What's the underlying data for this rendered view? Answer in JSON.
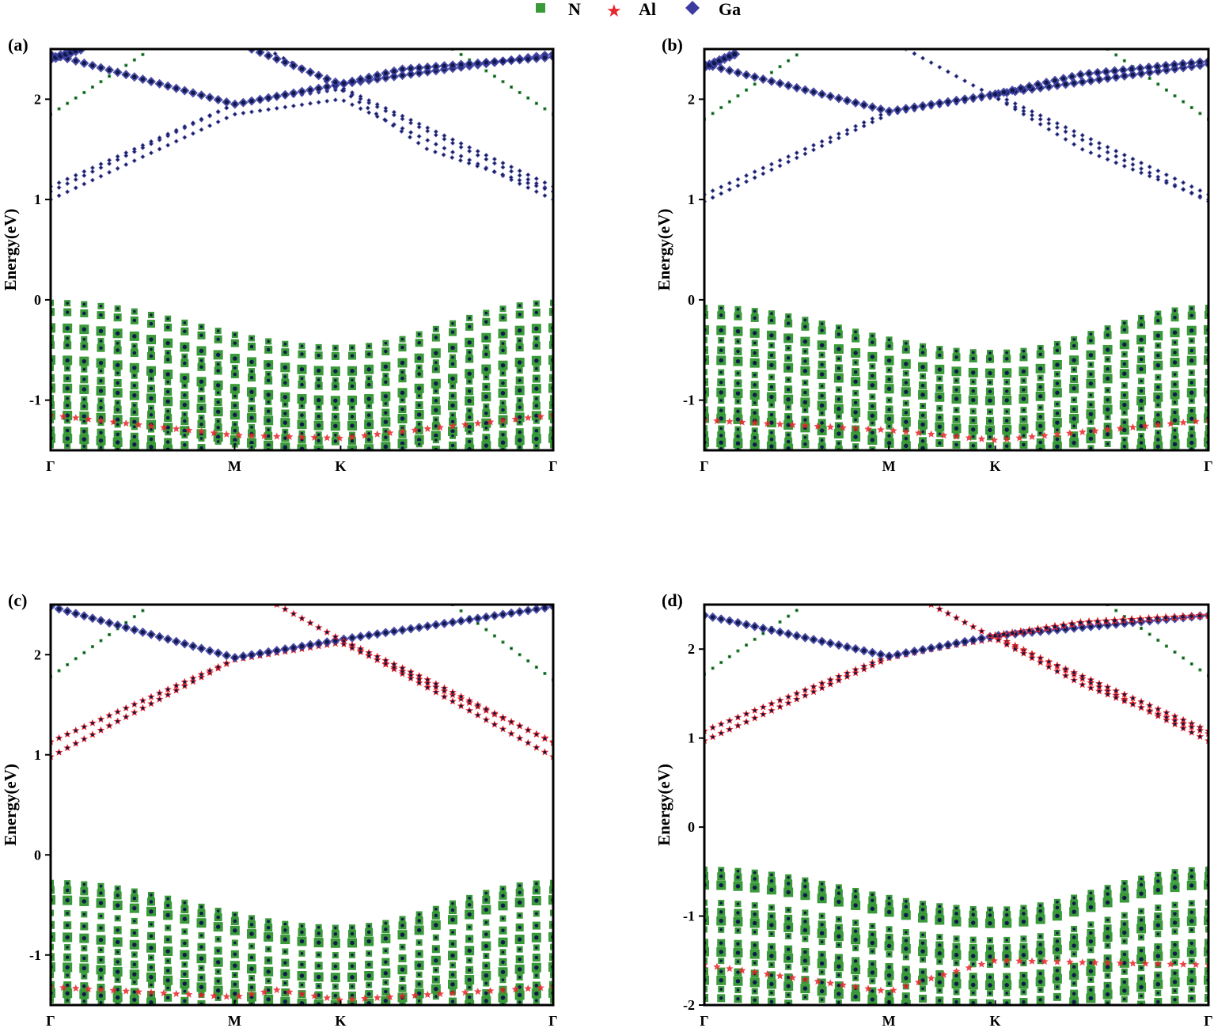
{
  "legend": {
    "items": [
      {
        "label": "N",
        "marker": "square",
        "color": "#3a9a3a"
      },
      {
        "label": "Al",
        "marker": "star",
        "color": "#e8252a"
      },
      {
        "label": "Ga",
        "marker": "diamond",
        "color": "#3b3ba0"
      }
    ]
  },
  "colors": {
    "N": "#3a9a3a",
    "Al": "#e8252a",
    "Ga": "#3b3ba0",
    "inner": "#0e1a4a"
  },
  "chart_data": [
    {
      "type": "scatter",
      "panel": "(a)",
      "ylabel": "Energy(eV)",
      "ylim": [
        -1.5,
        2.5
      ],
      "yticks": [
        -1,
        0,
        1,
        2
      ],
      "xticks": [
        "Γ",
        "M",
        "K",
        "Γ"
      ],
      "xtick_pos": [
        0,
        0.366,
        0.577,
        1.0
      ],
      "gap_vbm": -0.03,
      "gap_cbm": 1.0,
      "cond_bands": [
        {
          "points": [
            [
              0,
              1.0
            ],
            [
              0.366,
              1.85
            ],
            [
              0.577,
              2.0
            ],
            [
              1.0,
              1.0
            ]
          ],
          "species": "Ga",
          "size": 3
        },
        {
          "points": [
            [
              0,
              1.08
            ],
            [
              0.366,
              1.95
            ],
            [
              0.577,
              2.1
            ],
            [
              1.0,
              1.08
            ]
          ],
          "species": "Ga",
          "size": 3
        },
        {
          "points": [
            [
              0,
              1.13
            ],
            [
              0.366,
              1.95
            ],
            [
              0.577,
              2.12
            ],
            [
              1.0,
              1.13
            ]
          ],
          "species": "Ga",
          "size": 3
        },
        {
          "points": [
            [
              0,
              1.85
            ],
            [
              0.2,
              2.5
            ]
          ],
          "species": "N",
          "size": 2
        },
        {
          "points": [
            [
              0.8,
              2.5
            ],
            [
              1.0,
              1.85
            ]
          ],
          "species": "N",
          "size": 2
        },
        {
          "points": [
            [
              0,
              2.45
            ],
            [
              0.366,
              1.95
            ],
            [
              0.577,
              2.15
            ],
            [
              1.0,
              2.45
            ]
          ],
          "species": "Ga",
          "size": 6
        },
        {
          "points": [
            [
              0,
              2.4
            ],
            [
              0.06,
              2.5
            ]
          ],
          "species": "Ga",
          "size": 7
        },
        {
          "points": [
            [
              0.43,
              2.5
            ],
            [
              0.577,
              2.1
            ],
            [
              0.75,
              1.5
            ],
            [
              1.0,
              1.08
            ]
          ],
          "species": "Ga",
          "size": 3
        },
        {
          "points": [
            [
              0.4,
              2.5
            ],
            [
              0.577,
              2.15
            ],
            [
              0.7,
              2.3
            ],
            [
              1.0,
              2.42
            ]
          ],
          "species": "Ga",
          "size": 6
        }
      ],
      "val_tops": [
        -0.03,
        -0.12,
        -0.28,
        -0.38,
        -0.45,
        -0.6,
        -0.68,
        -0.78,
        -0.88,
        -0.98,
        -1.05,
        -1.15,
        -1.2,
        -1.3,
        -1.38,
        -1.45
      ],
      "al_valence": [
        [
          0,
          -1.15
        ],
        [
          0.366,
          -1.35
        ],
        [
          0.577,
          -1.38
        ],
        [
          1.0,
          -1.15
        ]
      ]
    },
    {
      "type": "scatter",
      "panel": "(b)",
      "ylabel": "Energy(eV)",
      "ylim": [
        -1.5,
        2.5
      ],
      "yticks": [
        -1,
        0,
        1,
        2
      ],
      "xticks": [
        "Γ",
        "M",
        "K",
        "Γ"
      ],
      "xtick_pos": [
        0,
        0.366,
        0.577,
        1.0
      ],
      "gap_vbm": -0.08,
      "gap_cbm": 0.98,
      "cond_bands": [
        {
          "points": [
            [
              0,
              0.98
            ],
            [
              0.366,
              1.85
            ],
            [
              0.577,
              2.02
            ],
            [
              1.0,
              0.98
            ]
          ],
          "species": "Ga",
          "size": 3
        },
        {
          "points": [
            [
              0,
              1.05
            ],
            [
              0.366,
              1.88
            ],
            [
              0.577,
              2.05
            ],
            [
              1.0,
              1.05
            ]
          ],
          "species": "Ga",
          "size": 3
        },
        {
          "points": [
            [
              0,
              1.8
            ],
            [
              0.2,
              2.5
            ]
          ],
          "species": "N",
          "size": 2
        },
        {
          "points": [
            [
              0.8,
              2.5
            ],
            [
              1.0,
              1.8
            ]
          ],
          "species": "N",
          "size": 2
        },
        {
          "points": [
            [
              0,
              2.35
            ],
            [
              0.366,
              1.88
            ],
            [
              0.577,
              2.05
            ],
            [
              1.0,
              2.35
            ]
          ],
          "species": "Ga",
          "size": 6
        },
        {
          "points": [
            [
              0,
              2.32
            ],
            [
              0.06,
              2.45
            ]
          ],
          "species": "Ga",
          "size": 7
        },
        {
          "points": [
            [
              0.4,
              2.5
            ],
            [
              0.577,
              2.02
            ],
            [
              0.75,
              1.5
            ],
            [
              1.0,
              1.0
            ]
          ],
          "species": "Ga",
          "size": 3
        },
        {
          "points": [
            [
              0.577,
              2.05
            ],
            [
              0.75,
              2.25
            ],
            [
              1.0,
              2.38
            ]
          ],
          "species": "Ga",
          "size": 6
        }
      ],
      "val_tops": [
        -0.08,
        -0.15,
        -0.3,
        -0.4,
        -0.5,
        -0.6,
        -0.72,
        -0.82,
        -0.92,
        -1.0,
        -1.1,
        -1.18,
        -1.28,
        -1.35,
        -1.42,
        -1.48
      ],
      "al_valence": [
        [
          0,
          -1.2
        ],
        [
          0.366,
          -1.3
        ],
        [
          0.577,
          -1.4
        ],
        [
          1.0,
          -1.2
        ]
      ]
    },
    {
      "type": "scatter",
      "panel": "(c)",
      "ylabel": "Energy(eV)",
      "ylim": [
        -1.5,
        2.5
      ],
      "yticks": [
        -1,
        0,
        1,
        2
      ],
      "xticks": [
        "Γ",
        "M",
        "K",
        "Γ"
      ],
      "xtick_pos": [
        0,
        0.366,
        0.577,
        1.0
      ],
      "gap_vbm": -0.28,
      "gap_cbm": 0.98,
      "cond_bands": [
        {
          "points": [
            [
              0,
              0.98
            ],
            [
              0.366,
              1.95
            ],
            [
              0.577,
              2.15
            ],
            [
              1.0,
              0.98
            ]
          ],
          "species": "Al",
          "size": 4
        },
        {
          "points": [
            [
              0,
              1.13
            ],
            [
              0.366,
              1.95
            ],
            [
              0.577,
              2.12
            ],
            [
              1.0,
              1.13
            ]
          ],
          "species": "Al",
          "size": 4
        },
        {
          "points": [
            [
              0,
              1.78
            ],
            [
              0.2,
              2.5
            ]
          ],
          "species": "N",
          "size": 2
        },
        {
          "points": [
            [
              0.8,
              2.5
            ],
            [
              1.0,
              1.75
            ]
          ],
          "species": "N",
          "size": 2
        },
        {
          "points": [
            [
              0,
              2.48
            ],
            [
              0.366,
              1.97
            ],
            [
              0.577,
              2.15
            ],
            [
              1.0,
              2.48
            ]
          ],
          "species": "Ga",
          "size": 6
        },
        {
          "points": [
            [
              0.45,
              2.5
            ],
            [
              0.577,
              2.15
            ],
            [
              0.75,
              1.75
            ],
            [
              1.0,
              1.12
            ]
          ],
          "species": "Al",
          "size": 4
        }
      ],
      "val_tops": [
        -0.28,
        -0.35,
        -0.45,
        -0.58,
        -0.7,
        -0.82,
        -0.92,
        -1.02,
        -1.12,
        -1.2,
        -1.3,
        -1.38,
        -1.45
      ],
      "al_valence": [
        [
          0,
          -1.32
        ],
        [
          0.366,
          -1.42
        ],
        [
          0.45,
          -1.35
        ],
        [
          0.577,
          -1.45
        ],
        [
          1.0,
          -1.32
        ]
      ]
    },
    {
      "type": "scatter",
      "panel": "(d)",
      "ylabel": "Energy(eV)",
      "ylim": [
        -2,
        2.5
      ],
      "yticks": [
        -2,
        -1,
        0,
        1,
        2
      ],
      "xticks": [
        "Γ",
        "M",
        "K",
        "Γ"
      ],
      "xtick_pos": [
        0,
        0.366,
        0.577,
        1.0
      ],
      "gap_vbm": -0.48,
      "gap_cbm": 0.97,
      "cond_bands": [
        {
          "points": [
            [
              0,
              0.97
            ],
            [
              0.366,
              1.9
            ],
            [
              0.577,
              2.15
            ],
            [
              1.0,
              0.97
            ]
          ],
          "species": "Al",
          "size": 4
        },
        {
          "points": [
            [
              0,
              1.08
            ],
            [
              0.366,
              1.92
            ],
            [
              0.577,
              2.12
            ],
            [
              1.0,
              1.08
            ]
          ],
          "species": "Al",
          "size": 4
        },
        {
          "points": [
            [
              0,
              1.72
            ],
            [
              0.2,
              2.5
            ]
          ],
          "species": "N",
          "size": 2
        },
        {
          "points": [
            [
              0.8,
              2.5
            ],
            [
              1.0,
              1.7
            ]
          ],
          "species": "N",
          "size": 2
        },
        {
          "points": [
            [
              0,
              2.38
            ],
            [
              0.366,
              1.92
            ],
            [
              0.577,
              2.15
            ],
            [
              1.0,
              2.38
            ]
          ],
          "species": "Ga",
          "size": 6
        },
        {
          "points": [
            [
              0.45,
              2.5
            ],
            [
              0.577,
              2.12
            ],
            [
              0.75,
              1.6
            ],
            [
              1.0,
              1.05
            ]
          ],
          "species": "Al",
          "size": 4
        },
        {
          "points": [
            [
              0.577,
              2.15
            ],
            [
              0.75,
              2.3
            ],
            [
              1.0,
              2.38
            ]
          ],
          "species": "Al",
          "size": 5
        }
      ],
      "val_tops": [
        -0.48,
        -0.55,
        -0.65,
        -0.85,
        -0.95,
        -1.05,
        -1.15,
        -1.3,
        -1.4,
        -1.5,
        -1.62,
        -1.72,
        -1.82,
        -1.92
      ],
      "al_valence": [
        [
          0,
          -1.55
        ],
        [
          0.366,
          -1.85
        ],
        [
          0.45,
          -1.7
        ],
        [
          0.577,
          -1.5
        ],
        [
          1.0,
          -1.55
        ]
      ]
    }
  ]
}
